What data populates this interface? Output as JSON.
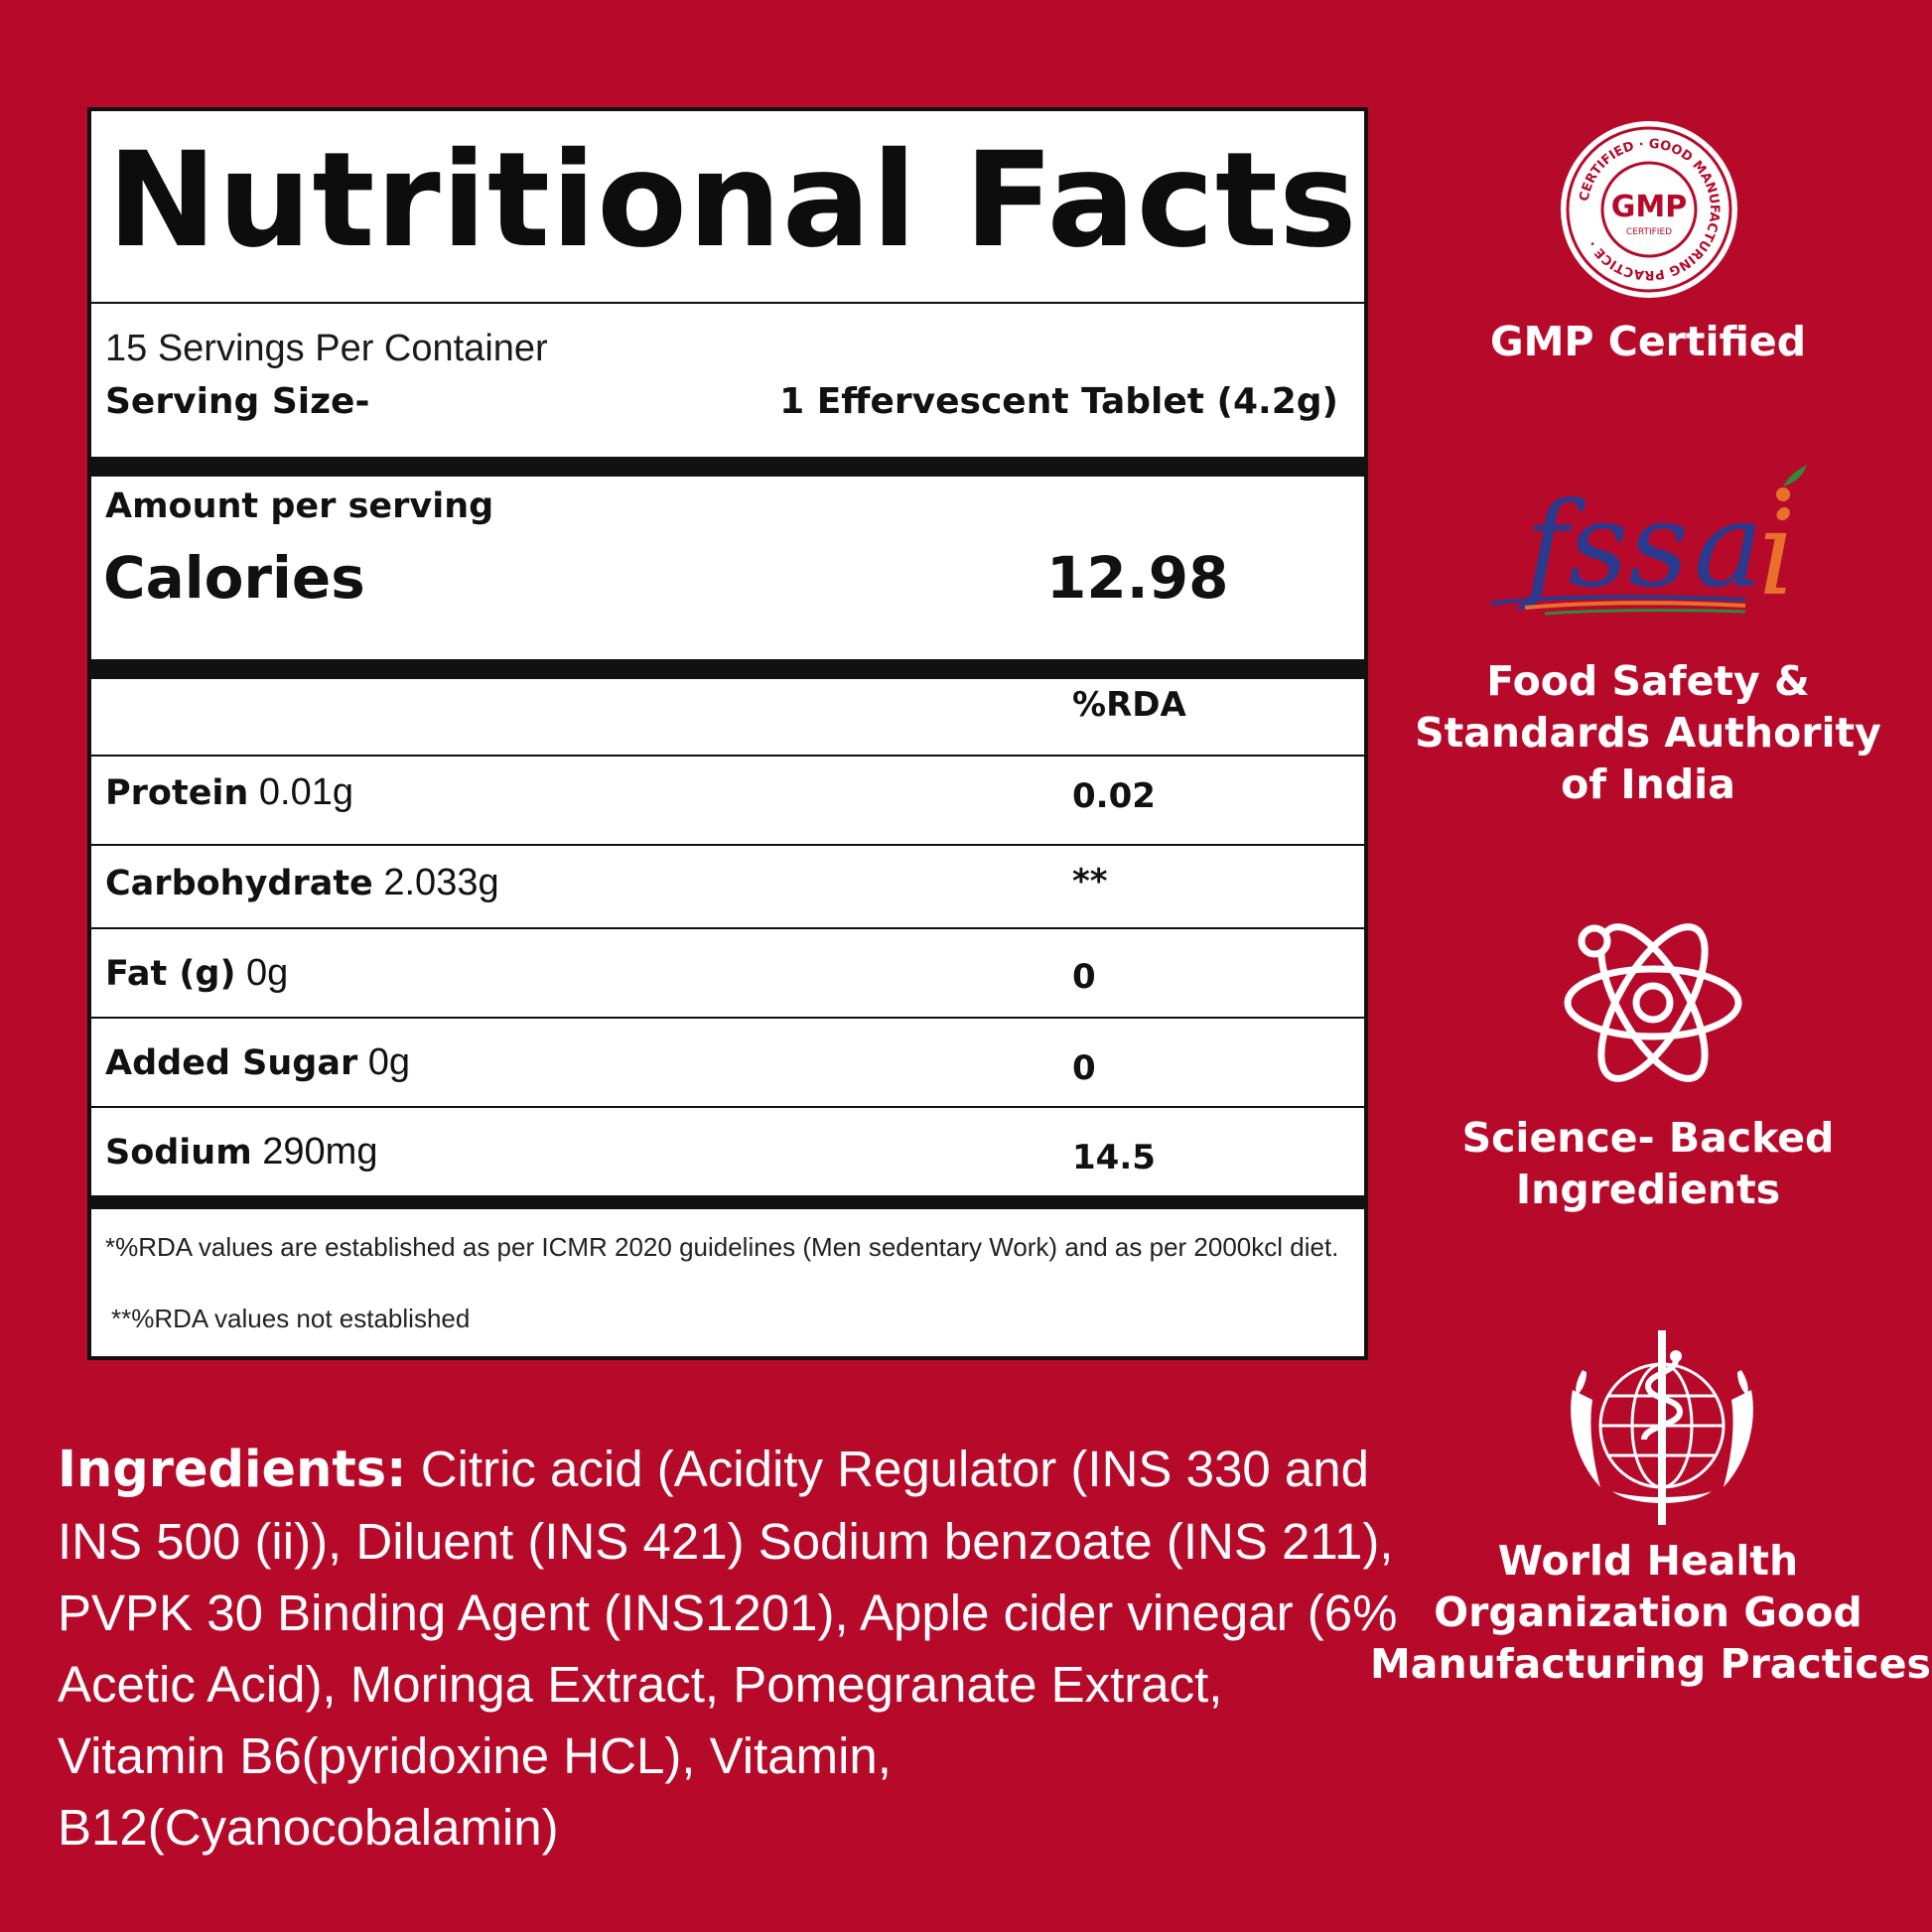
{
  "panel": {
    "title": "Nutritional Facts",
    "servings_per_container": "15 Servings Per Container",
    "serving_size_label": "Serving Size-",
    "serving_size_value": "1 Effervescent Tablet (4.2g)",
    "amount_per_serving": "Amount per serving",
    "calories_label": "Calories",
    "calories_value": "12.98",
    "rda_header": "%RDA",
    "rows": [
      {
        "name": "Protein",
        "amount": " 0.01g",
        "rda": "0.02"
      },
      {
        "name": "Carbohydrate",
        "amount": " 2.033g",
        "rda": "**"
      },
      {
        "name": "Fat (g)",
        "amount": " 0g",
        "rda": "0"
      },
      {
        "name": "Added Sugar",
        "amount": " 0g",
        "rda": "0"
      },
      {
        "name": "Sodium",
        "amount": " 290mg",
        "rda": "14.5"
      }
    ],
    "footnote_1": "*%RDA values are established as per ICMR 2020 guidelines (Men sedentary Work) and as per 2000kcl diet.",
    "footnote_2": "**%RDA values not established"
  },
  "ingredients": {
    "label": "Ingredients:",
    "text": " Citric acid (Acidity Regulator (INS 330 and INS 500 (ii)), Diluent (INS 421) Sodium benzoate (INS 211), PVPK 30 Binding Agent (INS1201), Apple cider vinegar (6% Acetic Acid), Moringa Extract, Pomegranate Extract, Vitamin B6(pyridoxine HCL), Vitamin, B12(Cyanocobalamin)"
  },
  "badges": {
    "gmp": {
      "label": "GMP Certified",
      "seal_ring_text": "CERTIFIED · GOOD MANUFACTURING PRACTICE",
      "seal_center": "GMP",
      "seal_sub": "CERTIFIED"
    },
    "fssai": {
      "logo_text": "fssai",
      "label_line1": "Food Safety &",
      "label_line2": "Standards Authority",
      "label_line3": "of India"
    },
    "science": {
      "label_line1": "Science- Backed",
      "label_line2": "Ingredients"
    },
    "who": {
      "label_line1": "World Health",
      "label_line2": "Organization Good",
      "label_line3": "Manufacturing Practices"
    }
  },
  "colors": {
    "background": "#b70a2a",
    "panel": "#ffffff",
    "text": "#111111",
    "fssai_blue": "#2b3a8f",
    "fssai_orange": "#e8702a",
    "fssai_green": "#2f8a3a"
  }
}
